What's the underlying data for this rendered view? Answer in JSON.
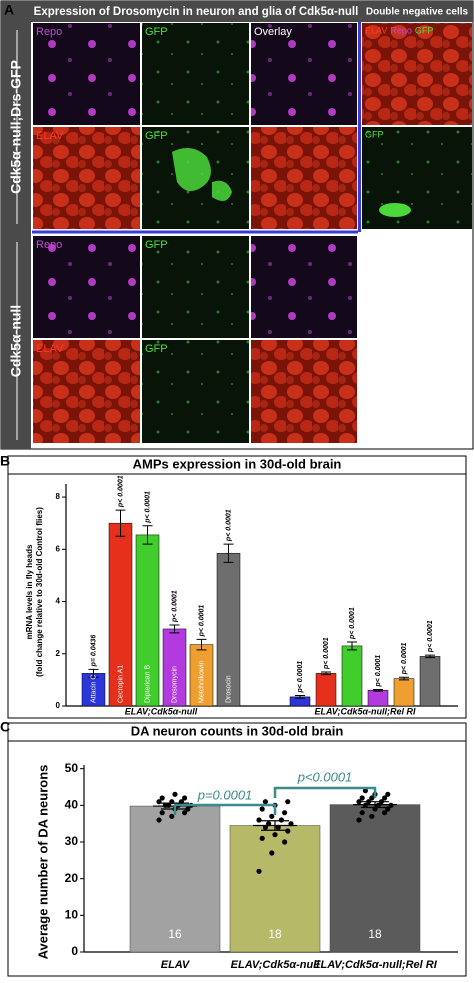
{
  "panel_a": {
    "letter": "A",
    "title": "Expression of Drosomycin in neuron and glia of Cdk5α-null",
    "side_title": "Double negative cells",
    "row_labels": [
      "Cdk5α-null;Drs-GFP",
      "Cdk5α-null"
    ],
    "tiles": [
      [
        "Repo",
        "GFP",
        "Overlay"
      ],
      [
        "ELAV",
        "GFP",
        ""
      ],
      [
        "Repo",
        "GFP",
        ""
      ],
      [
        "ELAV",
        "GFP",
        ""
      ]
    ],
    "side_tiles": [
      [
        "ELAV",
        "Repo",
        "GFP"
      ],
      [
        "GFP"
      ]
    ]
  },
  "chart_data": [
    {
      "type": "bar",
      "letter": "B",
      "title": "AMPs expression in 30d-old brain",
      "ylabel": [
        "mRNA levels in fly heads",
        "(fold change relative to 30d-old Control flies)"
      ],
      "categories": [
        "ELAV;Cdk5α-null",
        "ELAV;Cdk5α-null;Rel RI"
      ],
      "ylim": [
        0,
        8.5
      ],
      "yticks": [
        0,
        2,
        4,
        6,
        8
      ],
      "series": [
        {
          "name": "Attacin C",
          "color": "#2b35d8",
          "values": [
            1.25,
            0.35
          ],
          "errors": [
            0.15,
            0.05
          ],
          "value_labels": [
            "p= 0.0436",
            "p< 0.0001"
          ]
        },
        {
          "name": "Cecropin A1",
          "color": "#e5301c",
          "values": [
            7.0,
            1.25
          ],
          "errors": [
            0.5,
            0.05
          ],
          "value_labels": [
            "p< 0.0001",
            "p< 0.0001"
          ]
        },
        {
          "name": "Dipterican B",
          "color": "#41cd2c",
          "values": [
            6.55,
            2.3
          ],
          "errors": [
            0.35,
            0.15
          ],
          "value_labels": [
            "p< 0.0001",
            "p< 0.0001"
          ]
        },
        {
          "name": "Drosomycin",
          "color": "#b23ade",
          "values": [
            2.95,
            0.6
          ],
          "errors": [
            0.15,
            0.03
          ],
          "value_labels": [
            "p< 0.0001",
            "p< 0.0001"
          ]
        },
        {
          "name": "Metchnikowin",
          "color": "#ee9f2f",
          "values": [
            2.35,
            1.05
          ],
          "errors": [
            0.2,
            0.05
          ],
          "value_labels": [
            "p< 0.0001",
            "p< 0.0001"
          ]
        },
        {
          "name": "Drosocin",
          "color": "#6e6e6e",
          "values": [
            5.85,
            1.9
          ],
          "errors": [
            0.35,
            0.05
          ],
          "value_labels": [
            "p< 0.0001",
            "p< 0.0001"
          ]
        }
      ]
    },
    {
      "type": "bar_scatter",
      "letter": "C",
      "title": "DA neuron counts in 30d-old brain",
      "ylabel": "Average number of DA neurons",
      "categories": [
        "ELAV",
        "ELAV;Cdk5α-null",
        "ELAV;Cdk5α-null;Rel RI"
      ],
      "colors": [
        "#a2a2a2",
        "#b6b968",
        "#5b5b5b"
      ],
      "values": [
        39.8,
        34.5,
        40.2
      ],
      "errors": [
        0.8,
        1.3,
        0.8
      ],
      "n": [
        16,
        18,
        18
      ],
      "points": [
        [
          36,
          37,
          38,
          38,
          39,
          39,
          40,
          40,
          40,
          40,
          41,
          41,
          41,
          42,
          42,
          43
        ],
        [
          22,
          27,
          30,
          31,
          32,
          33,
          34,
          34,
          35,
          35,
          36,
          36,
          37,
          38,
          39,
          40,
          41,
          41
        ],
        [
          36,
          37,
          38,
          38,
          39,
          39,
          40,
          40,
          40,
          41,
          41,
          41,
          42,
          42,
          42,
          43,
          43,
          44
        ]
      ],
      "ylim": [
        0,
        51
      ],
      "yticks": [
        0,
        10,
        20,
        30,
        40,
        50
      ],
      "comparisons": [
        {
          "pair": [
            0,
            1
          ],
          "label": "p=0.0001"
        },
        {
          "pair": [
            1,
            2
          ],
          "label": "p<0.0001"
        }
      ],
      "comparison_color": "#3a8c8c"
    }
  ]
}
